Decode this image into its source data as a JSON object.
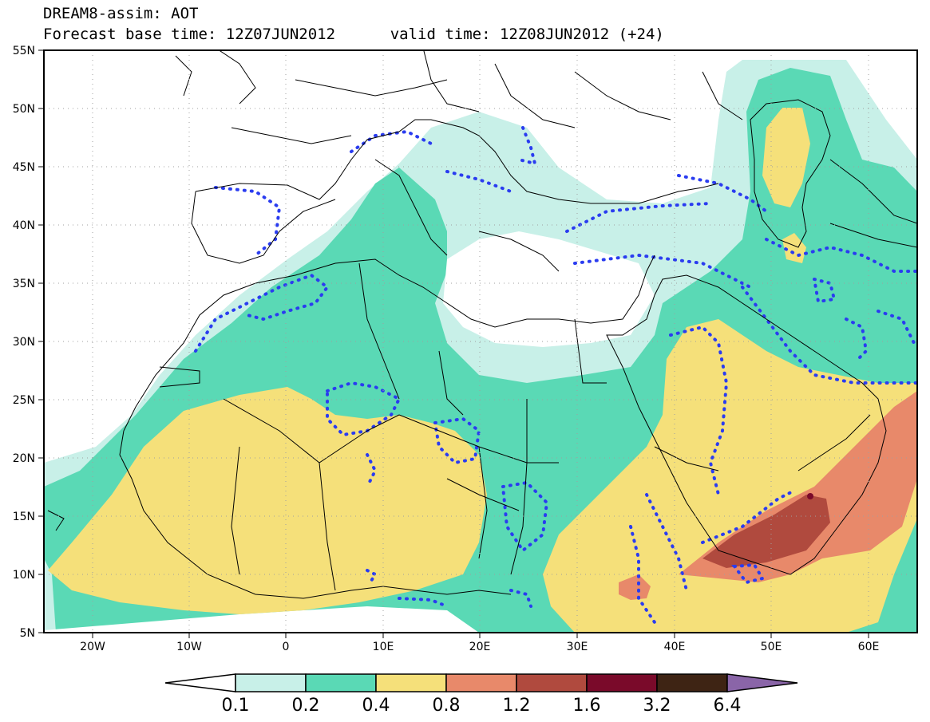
{
  "title": {
    "line1": "DREAM8-assim: AOT",
    "base_label": "Forecast base time: 12Z07JUN2012",
    "valid_label": "valid time: 12Z08JUN2012 (+24)"
  },
  "axes": {
    "lat_labels": [
      "55N",
      "50N",
      "45N",
      "40N",
      "35N",
      "30N",
      "25N",
      "20N",
      "15N",
      "10N",
      "5N"
    ],
    "lon_labels": [
      "20W",
      "10W",
      "0",
      "10E",
      "20E",
      "30E",
      "40E",
      "50E",
      "60E"
    ],
    "lon_range": [
      -25,
      65
    ],
    "lat_range": [
      5,
      55
    ]
  },
  "colorbar": {
    "levels": [
      "0.1",
      "0.2",
      "0.4",
      "0.8",
      "1.2",
      "1.6",
      "3.2",
      "6.4"
    ],
    "colors": [
      "#ffffff",
      "#c8f0e8",
      "#5ad9b5",
      "#f5e07a",
      "#e8896a",
      "#b04a3e",
      "#7a0a2a",
      "#3e2414",
      "#8a65a8"
    ]
  },
  "legend_colors": {
    "land_line": "#000000",
    "contour_dots": "#2a3cf0"
  }
}
